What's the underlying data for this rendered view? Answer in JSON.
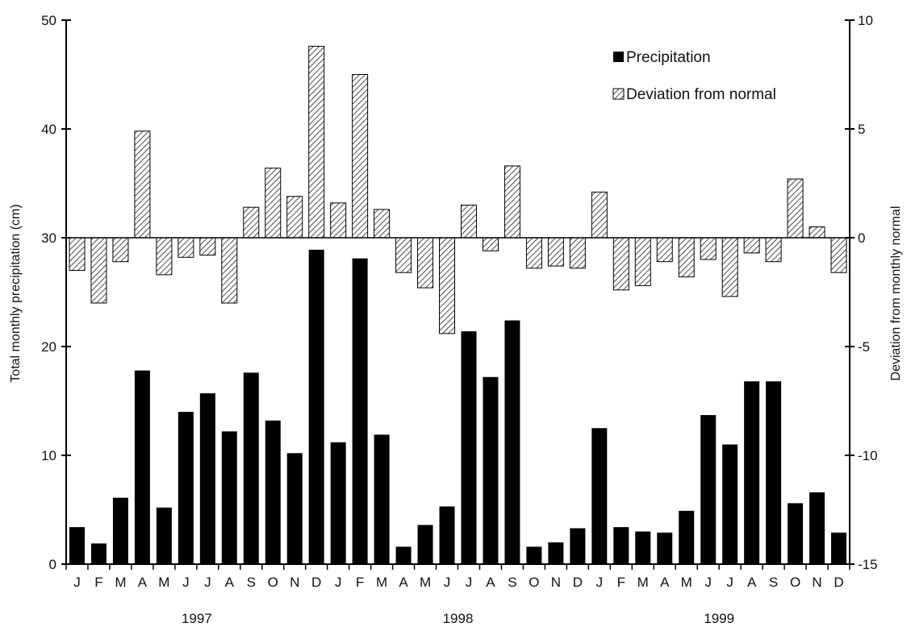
{
  "chart_data": {
    "type": "bar",
    "categories": [
      "J",
      "F",
      "M",
      "A",
      "M",
      "J",
      "J",
      "A",
      "S",
      "O",
      "N",
      "D",
      "J",
      "F",
      "M",
      "A",
      "M",
      "J",
      "J",
      "A",
      "S",
      "O",
      "N",
      "D",
      "J",
      "F",
      "M",
      "A",
      "M",
      "J",
      "J",
      "A",
      "S",
      "O",
      "N",
      "D"
    ],
    "year_labels": [
      {
        "label": "1997",
        "start_index": 0,
        "end_index": 11
      },
      {
        "label": "1998",
        "start_index": 12,
        "end_index": 23
      },
      {
        "label": "1999",
        "start_index": 24,
        "end_index": 35
      }
    ],
    "series": [
      {
        "name": "Precipitation",
        "axis": "left",
        "style": "solid",
        "color": "#000000",
        "values": [
          3.4,
          1.9,
          6.1,
          17.8,
          5.2,
          14.0,
          15.7,
          12.2,
          17.6,
          13.2,
          10.2,
          28.9,
          11.2,
          28.1,
          11.9,
          1.6,
          3.6,
          5.3,
          21.4,
          17.2,
          22.4,
          1.6,
          2.0,
          3.3,
          12.5,
          3.4,
          3.0,
          2.9,
          4.9,
          13.7,
          11.0,
          16.8,
          16.8,
          5.6,
          6.6,
          2.9
        ]
      },
      {
        "name": "Deviation from normal",
        "axis": "right",
        "style": "hatched",
        "color": "#000000",
        "values": [
          -1.5,
          -3.0,
          -1.1,
          4.9,
          -1.7,
          -0.9,
          -0.8,
          -3.0,
          1.4,
          3.2,
          1.9,
          8.8,
          1.6,
          7.5,
          1.3,
          -1.6,
          -2.3,
          -4.4,
          1.5,
          -0.6,
          3.3,
          -1.4,
          -1.3,
          -1.4,
          2.1,
          -2.4,
          -2.2,
          -1.1,
          -1.8,
          -1.0,
          -2.7,
          -0.7,
          -1.1,
          2.7,
          0.5,
          -1.6
        ]
      }
    ],
    "y_left": {
      "label": "Total monthly precipitation (cm)",
      "lim": [
        0,
        50
      ],
      "ticks": [
        0,
        10,
        20,
        30,
        40,
        50
      ]
    },
    "y_right": {
      "label": "Deviation from monthly normal",
      "lim": [
        -15,
        10
      ],
      "ticks": [
        -15,
        -10,
        -5,
        0,
        5,
        10
      ]
    },
    "legend": {
      "position": "top-right"
    },
    "grid": false
  }
}
